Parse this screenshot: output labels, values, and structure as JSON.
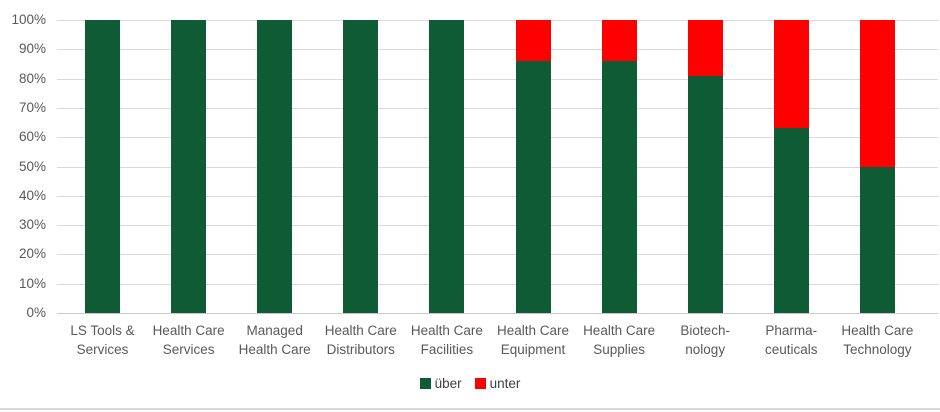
{
  "chart_data": {
    "type": "bar",
    "stacked": true,
    "percent_axis": true,
    "title": "",
    "xlabel": "",
    "ylabel": "",
    "categories": [
      [
        "LS Tools &",
        "Services"
      ],
      [
        "Health Care",
        "Services"
      ],
      [
        "Managed",
        "Health Care"
      ],
      [
        "Health Care",
        "Distributors"
      ],
      [
        "Health Care",
        "Facilities"
      ],
      [
        "Health Care",
        "Equipment"
      ],
      [
        "Health Care",
        "Supplies"
      ],
      [
        "Biotech-",
        "nology"
      ],
      [
        "Pharma-",
        "ceuticals"
      ],
      [
        "Health Care",
        "Technology"
      ]
    ],
    "series": [
      {
        "name": "über",
        "color": "#0e5b36",
        "values": [
          100,
          100,
          100,
          100,
          100,
          86,
          86,
          81,
          63,
          50
        ]
      },
      {
        "name": "unter",
        "color": "#ff0000",
        "values": [
          0,
          0,
          0,
          0,
          0,
          14,
          14,
          19,
          37,
          50
        ]
      }
    ],
    "ylim": [
      0,
      100
    ],
    "ytick_step": 10,
    "ytick_labels": [
      "0%",
      "10%",
      "20%",
      "30%",
      "40%",
      "50%",
      "60%",
      "70%",
      "80%",
      "90%",
      "100%"
    ],
    "grid": true,
    "legend_position": "bottom-center"
  },
  "colors": {
    "grid": "#d9d9d9",
    "axis_line": "#c8c8c8",
    "tick_text": "#595959",
    "legend_text": "#404040",
    "background": "#ffffff",
    "bottom_border": "#d8d8d8"
  }
}
